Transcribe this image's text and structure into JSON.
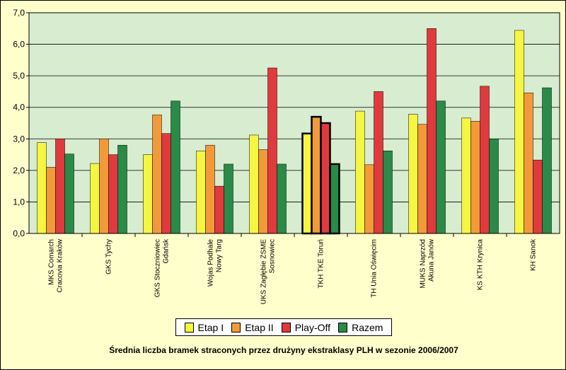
{
  "chart_data": {
    "type": "bar",
    "title": "Średnia liczba bramek straconych przez drużyny ekstraklasy PLH w sezonie 2006/2007",
    "ylim": [
      0,
      7
    ],
    "yticks": [
      "0,0",
      "1,0",
      "2,0",
      "3,0",
      "4,0",
      "5,0",
      "6,0",
      "7,0"
    ],
    "grid": true,
    "legend_position": "bottom",
    "categories": [
      [
        "MKS Comarch",
        "Cracovia Kraków"
      ],
      [
        "GKS Tychy"
      ],
      [
        "GKS Stoczniowiec",
        "Gdańsk"
      ],
      [
        "Wojas Podhale",
        "Nowy Targ"
      ],
      [
        "UKS Zagłębie ZSME",
        "Sosnowiec"
      ],
      [
        "TKH TKE Toruń"
      ],
      [
        "TH Unia Oświęcim"
      ],
      [
        "MUKS Naprzód",
        "Akuna Janów"
      ],
      [
        "KS KTH Krynica"
      ],
      [
        "KH Sanok"
      ]
    ],
    "highlight_category": 5,
    "series": [
      {
        "name": "Etap I",
        "color": "#f5f542",
        "values": [
          2.88,
          2.22,
          2.5,
          2.62,
          3.12,
          3.17,
          3.88,
          3.78,
          3.66,
          6.44
        ]
      },
      {
        "name": "Etap II",
        "color": "#f29a3a",
        "values": [
          2.1,
          3.0,
          3.76,
          2.8,
          2.66,
          3.7,
          2.18,
          3.46,
          3.56,
          4.46
        ]
      },
      {
        "name": "Play-Off",
        "color": "#e03a3e",
        "values": [
          3.0,
          2.5,
          3.17,
          1.5,
          5.25,
          3.5,
          4.5,
          6.5,
          4.67,
          2.33
        ]
      },
      {
        "name": "Razem",
        "color": "#2a8a48",
        "values": [
          2.52,
          2.8,
          4.2,
          2.2,
          2.2,
          2.2,
          2.62,
          4.2,
          3.0,
          4.62
        ]
      }
    ],
    "colors": {
      "plot_background": "#d8ecd0",
      "page_background": "#ffffcc",
      "gridline": "#000000"
    }
  }
}
